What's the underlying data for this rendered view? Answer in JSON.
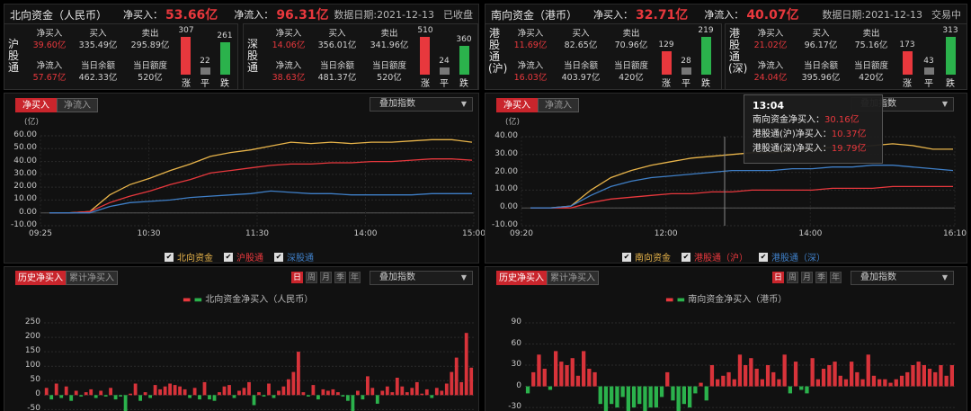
{
  "north": {
    "title": "北向资金（人民币）",
    "buy_label": "净买入：",
    "buy_value": "53.66亿",
    "inflow_label": "净流入：",
    "inflow_value": "96.31亿",
    "date": "数据日期:2021-12-13",
    "status": "已收盘",
    "sub1": {
      "name": "沪股通",
      "k1": "净买入",
      "v1": "39.60亿",
      "k2": "买入",
      "v2": "335.49亿",
      "k3": "卖出",
      "v3": "295.89亿",
      "k4": "净流入",
      "v4": "57.67亿",
      "k5": "当日余额",
      "v5": "462.33亿",
      "k6": "当日额度",
      "v6": "520亿",
      "up": "307",
      "flat": "22",
      "down": "261",
      "up_label": "涨",
      "flat_label": "平",
      "down_label": "跌"
    },
    "sub2": {
      "name": "深股通",
      "k1": "净买入",
      "v1": "14.06亿",
      "k2": "买入",
      "v2": "356.01亿",
      "k3": "卖出",
      "v3": "341.96亿",
      "k4": "净流入",
      "v4": "38.63亿",
      "k5": "当日余额",
      "v5": "481.37亿",
      "k6": "当日额度",
      "v6": "520亿",
      "up": "510",
      "flat": "24",
      "down": "360",
      "up_label": "涨",
      "flat_label": "平",
      "down_label": "跌"
    }
  },
  "south": {
    "title": "南向资金（港币）",
    "buy_label": "净买入：",
    "buy_value": "32.71亿",
    "inflow_label": "净流入：",
    "inflow_value": "40.07亿",
    "date": "数据日期:2021-12-13",
    "status": "交易中",
    "sub1": {
      "name": "港股通(沪)",
      "k1": "净买入",
      "v1": "11.69亿",
      "k2": "买入",
      "v2": "82.65亿",
      "k3": "卖出",
      "v3": "70.96亿",
      "k4": "净流入",
      "v4": "16.03亿",
      "k5": "当日余额",
      "v5": "403.97亿",
      "k6": "当日额度",
      "v6": "420亿",
      "up": "129",
      "flat": "28",
      "down": "219",
      "up_label": "涨",
      "flat_label": "平",
      "down_label": "跌"
    },
    "sub2": {
      "name": "港股通(深)",
      "k1": "净买入",
      "v1": "21.02亿",
      "k2": "买入",
      "v2": "96.17亿",
      "k3": "卖出",
      "v3": "75.16亿",
      "k4": "净流入",
      "v4": "24.04亿",
      "k5": "当日余额",
      "v5": "395.96亿",
      "k6": "当日额度",
      "v6": "420亿",
      "up": "173",
      "flat": "43",
      "down": "313",
      "up_label": "涨",
      "flat_label": "平",
      "down_label": "跌"
    }
  },
  "tabs": {
    "net_buy": "净买入",
    "net_inflow": "净流入",
    "history": "历史净买入",
    "cumulative": "累计净买入",
    "overlay": "叠加指数",
    "day": "日",
    "week": "周",
    "month": "月",
    "season": "季",
    "year": "年"
  },
  "tooltip": {
    "time": "13:04",
    "r1_label": "南向资金净买入：",
    "r1_value": "30.16亿",
    "r2_label": "港股通(沪)净买入：",
    "r2_value": "10.37亿",
    "r3_label": "港股通(深)净买入：",
    "r3_value": "19.79亿"
  },
  "colors": {
    "up": "#e8383d",
    "down": "#2bb24c",
    "yellow": "#e8b44a",
    "blue": "#3f7fc7"
  },
  "chart_data": [
    {
      "type": "line",
      "unit": "(亿)",
      "ylim": [
        -10,
        60
      ],
      "yticks": [
        "60.00",
        "50.00",
        "40.00",
        "30.00",
        "20.00",
        "10.00",
        "0.00",
        "-10.00"
      ],
      "xticks": [
        "09:25",
        "10:30",
        "11:30",
        "14:00",
        "15:00"
      ],
      "series": [
        {
          "name": "北向资金",
          "color": "#e8b44a",
          "values": [
            0,
            0,
            1,
            14,
            22,
            27,
            33,
            38,
            44,
            47,
            49,
            52,
            55,
            54,
            55,
            54,
            55,
            55,
            56,
            57,
            57,
            55
          ]
        },
        {
          "name": "沪股通",
          "color": "#e8383d",
          "values": [
            0,
            0,
            1,
            8,
            13,
            17,
            22,
            26,
            31,
            33,
            35,
            37,
            38,
            38,
            39,
            39,
            40,
            40,
            41,
            42,
            42,
            41
          ]
        },
        {
          "name": "深股通",
          "color": "#3f7fc7",
          "values": [
            0,
            0,
            0,
            5,
            8,
            9,
            10,
            12,
            13,
            14,
            15,
            17,
            16,
            15,
            15,
            14,
            14,
            14,
            14,
            15,
            15,
            15
          ]
        }
      ]
    },
    {
      "type": "line",
      "unit": "(亿)",
      "ylim": [
        -10,
        40
      ],
      "yticks": [
        "40.00",
        "30.00",
        "20.00",
        "10.00",
        "0.00",
        "-10.00"
      ],
      "xticks": [
        "09:20",
        "12:00",
        "14:00",
        "16:10"
      ],
      "series": [
        {
          "name": "南向资金",
          "color": "#e8b44a",
          "values": [
            0,
            0,
            1,
            10,
            17,
            21,
            24,
            26,
            28,
            29,
            30,
            31,
            31,
            32,
            33,
            34,
            34,
            35,
            36,
            35,
            33,
            33
          ]
        },
        {
          "name": "港股通（沪）",
          "color": "#e8383d",
          "values": [
            0,
            0,
            0,
            3,
            5,
            6,
            7,
            8,
            8,
            9,
            9,
            10,
            10,
            10,
            10,
            11,
            11,
            11,
            12,
            12,
            12,
            12
          ]
        },
        {
          "name": "港股通（深）",
          "color": "#3f7fc7",
          "values": [
            0,
            0,
            1,
            7,
            12,
            15,
            17,
            18,
            19,
            20,
            21,
            21,
            21,
            22,
            22,
            23,
            23,
            24,
            24,
            23,
            22,
            21
          ]
        }
      ]
    },
    {
      "type": "bar",
      "title": "北向资金净买入（人民币）",
      "yticks": [
        "250",
        "200",
        "150",
        "100",
        "50",
        "0",
        "-50"
      ],
      "ylim": [
        -55,
        250
      ],
      "values": [
        25,
        -15,
        40,
        -10,
        30,
        -20,
        15,
        -5,
        10,
        20,
        -10,
        15,
        -5,
        25,
        -15,
        -5,
        -60,
        5,
        40,
        -20,
        10,
        -10,
        35,
        20,
        30,
        40,
        35,
        30,
        20,
        -10,
        25,
        -15,
        45,
        -15,
        -20,
        10,
        30,
        35,
        -10,
        15,
        25,
        45,
        -35,
        10,
        -5,
        40,
        -10,
        15,
        30,
        55,
        80,
        150,
        10,
        -5,
        35,
        -15,
        20,
        15,
        20,
        10,
        -5,
        -20,
        -60,
        15,
        -15,
        65,
        25,
        -30,
        15,
        30,
        10,
        60,
        30,
        10,
        25,
        45,
        5,
        20,
        -10,
        25,
        15,
        40,
        80,
        130,
        45,
        215,
        95
      ]
    },
    {
      "type": "bar",
      "title": "南向资金净买入（港币）",
      "yticks": [
        "90",
        "60",
        "30",
        "0",
        "-30"
      ],
      "ylim": [
        -35,
        90
      ],
      "values": [
        -10,
        20,
        45,
        25,
        -5,
        50,
        35,
        30,
        40,
        15,
        50,
        25,
        20,
        -25,
        -35,
        -25,
        -30,
        -15,
        -40,
        -30,
        -25,
        -35,
        -30,
        -30,
        -15,
        20,
        -20,
        -40,
        -25,
        -30,
        -10,
        5,
        -20,
        30,
        10,
        15,
        20,
        10,
        45,
        30,
        40,
        25,
        10,
        30,
        20,
        10,
        45,
        -10,
        35,
        -5,
        -10,
        40,
        10,
        25,
        30,
        35,
        15,
        10,
        35,
        20,
        10,
        45,
        15,
        10,
        10,
        5,
        10,
        15,
        20,
        30,
        35,
        30,
        25,
        20,
        30,
        15,
        30
      ]
    }
  ]
}
